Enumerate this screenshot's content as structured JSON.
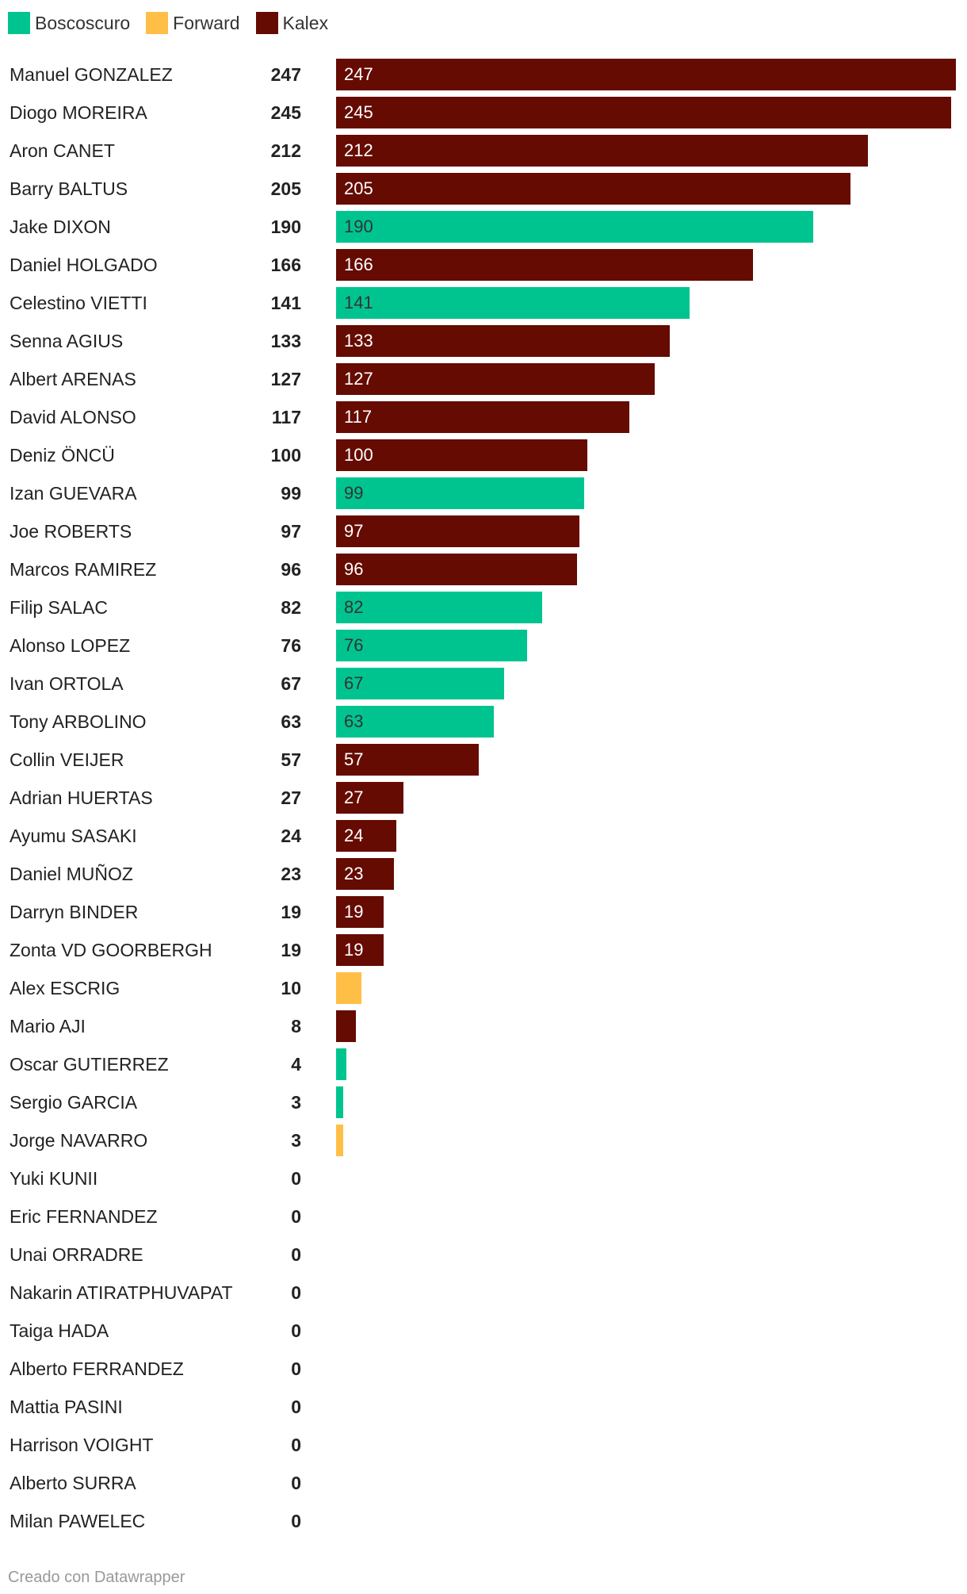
{
  "legend": [
    {
      "label": "Boscoscuro",
      "color": "#00c48f"
    },
    {
      "label": "Forward",
      "color": "#ffbf47"
    },
    {
      "label": "Kalex",
      "color": "#650b02"
    }
  ],
  "chart_data": {
    "type": "bar",
    "orientation": "horizontal",
    "xlim": [
      0,
      247
    ],
    "categories": [
      "Manuel GONZALEZ",
      "Diogo MOREIRA",
      "Aron CANET",
      "Barry BALTUS",
      "Jake DIXON",
      "Daniel HOLGADO",
      "Celestino VIETTI",
      "Senna AGIUS",
      "Albert ARENAS",
      "David ALONSO",
      "Deniz ÖNCÜ",
      "Izan GUEVARA",
      "Joe ROBERTS",
      "Marcos RAMIREZ",
      "Filip SALAC",
      "Alonso LOPEZ",
      "Ivan ORTOLA",
      "Tony ARBOLINO",
      "Collin VEIJER",
      "Adrian HUERTAS",
      "Ayumu SASAKI",
      "Daniel MUÑOZ",
      "Darryn BINDER",
      "Zonta VD GOORBERGH",
      "Alex ESCRIG",
      "Mario AJI",
      "Oscar GUTIERREZ",
      "Sergio GARCIA",
      "Jorge NAVARRO",
      "Yuki KUNII",
      "Eric FERNANDEZ",
      "Unai ORRADRE",
      "Nakarin ATIRATPHUVAPAT",
      "Taiga HADA",
      "Alberto FERRANDEZ",
      "Mattia PASINI",
      "Harrison VOIGHT",
      "Alberto SURRA",
      "Milan PAWELEC"
    ],
    "values": [
      247,
      245,
      212,
      205,
      190,
      166,
      141,
      133,
      127,
      117,
      100,
      99,
      97,
      96,
      82,
      76,
      67,
      63,
      57,
      27,
      24,
      23,
      19,
      19,
      10,
      8,
      4,
      3,
      3,
      0,
      0,
      0,
      0,
      0,
      0,
      0,
      0,
      0,
      0
    ],
    "teams": [
      "Kalex",
      "Kalex",
      "Kalex",
      "Kalex",
      "Boscoscuro",
      "Kalex",
      "Boscoscuro",
      "Kalex",
      "Kalex",
      "Kalex",
      "Kalex",
      "Boscoscuro",
      "Kalex",
      "Kalex",
      "Boscoscuro",
      "Boscoscuro",
      "Boscoscuro",
      "Boscoscuro",
      "Kalex",
      "Kalex",
      "Kalex",
      "Kalex",
      "Kalex",
      "Kalex",
      "Forward",
      "Kalex",
      "Boscoscuro",
      "Boscoscuro",
      "Forward",
      "Kalex",
      "Kalex",
      "Kalex",
      "Kalex",
      "Kalex",
      "Kalex",
      "Kalex",
      "Kalex",
      "Kalex",
      "Kalex"
    ]
  },
  "footer": "Creado con Datawrapper"
}
